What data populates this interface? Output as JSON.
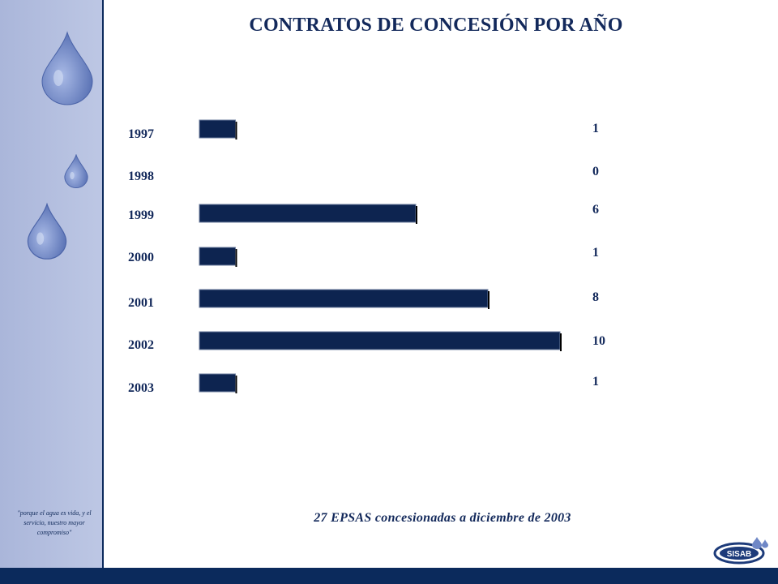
{
  "title": "CONTRATOS DE CONCESIÓN POR AÑO",
  "motto": "\"porque el agua es vida, y el servicio, nuestro mayor compromiso\"",
  "summary": "27 EPSAS concesionadas a diciembre de 2003",
  "logo_text": "SISAB",
  "colors": {
    "bar": "#0d2450",
    "sidebar": "#b3bfe0",
    "accent": "#0b2a5c",
    "drop": "#6f87c6"
  },
  "icons": [
    "water-drop-icon",
    "sisab-logo-icon"
  ],
  "chart_data": {
    "type": "bar",
    "orientation": "horizontal",
    "categories": [
      "1997",
      "1998",
      "1999",
      "2000",
      "2001",
      "2002",
      "2003"
    ],
    "values": [
      1,
      0,
      6,
      1,
      8,
      10,
      1
    ],
    "title": "CONTRATOS DE CONCESIÓN POR AÑO",
    "xlabel": "",
    "ylabel": "",
    "xlim": [
      0,
      10
    ],
    "grid": false,
    "legend": "none",
    "data_labels": true
  }
}
